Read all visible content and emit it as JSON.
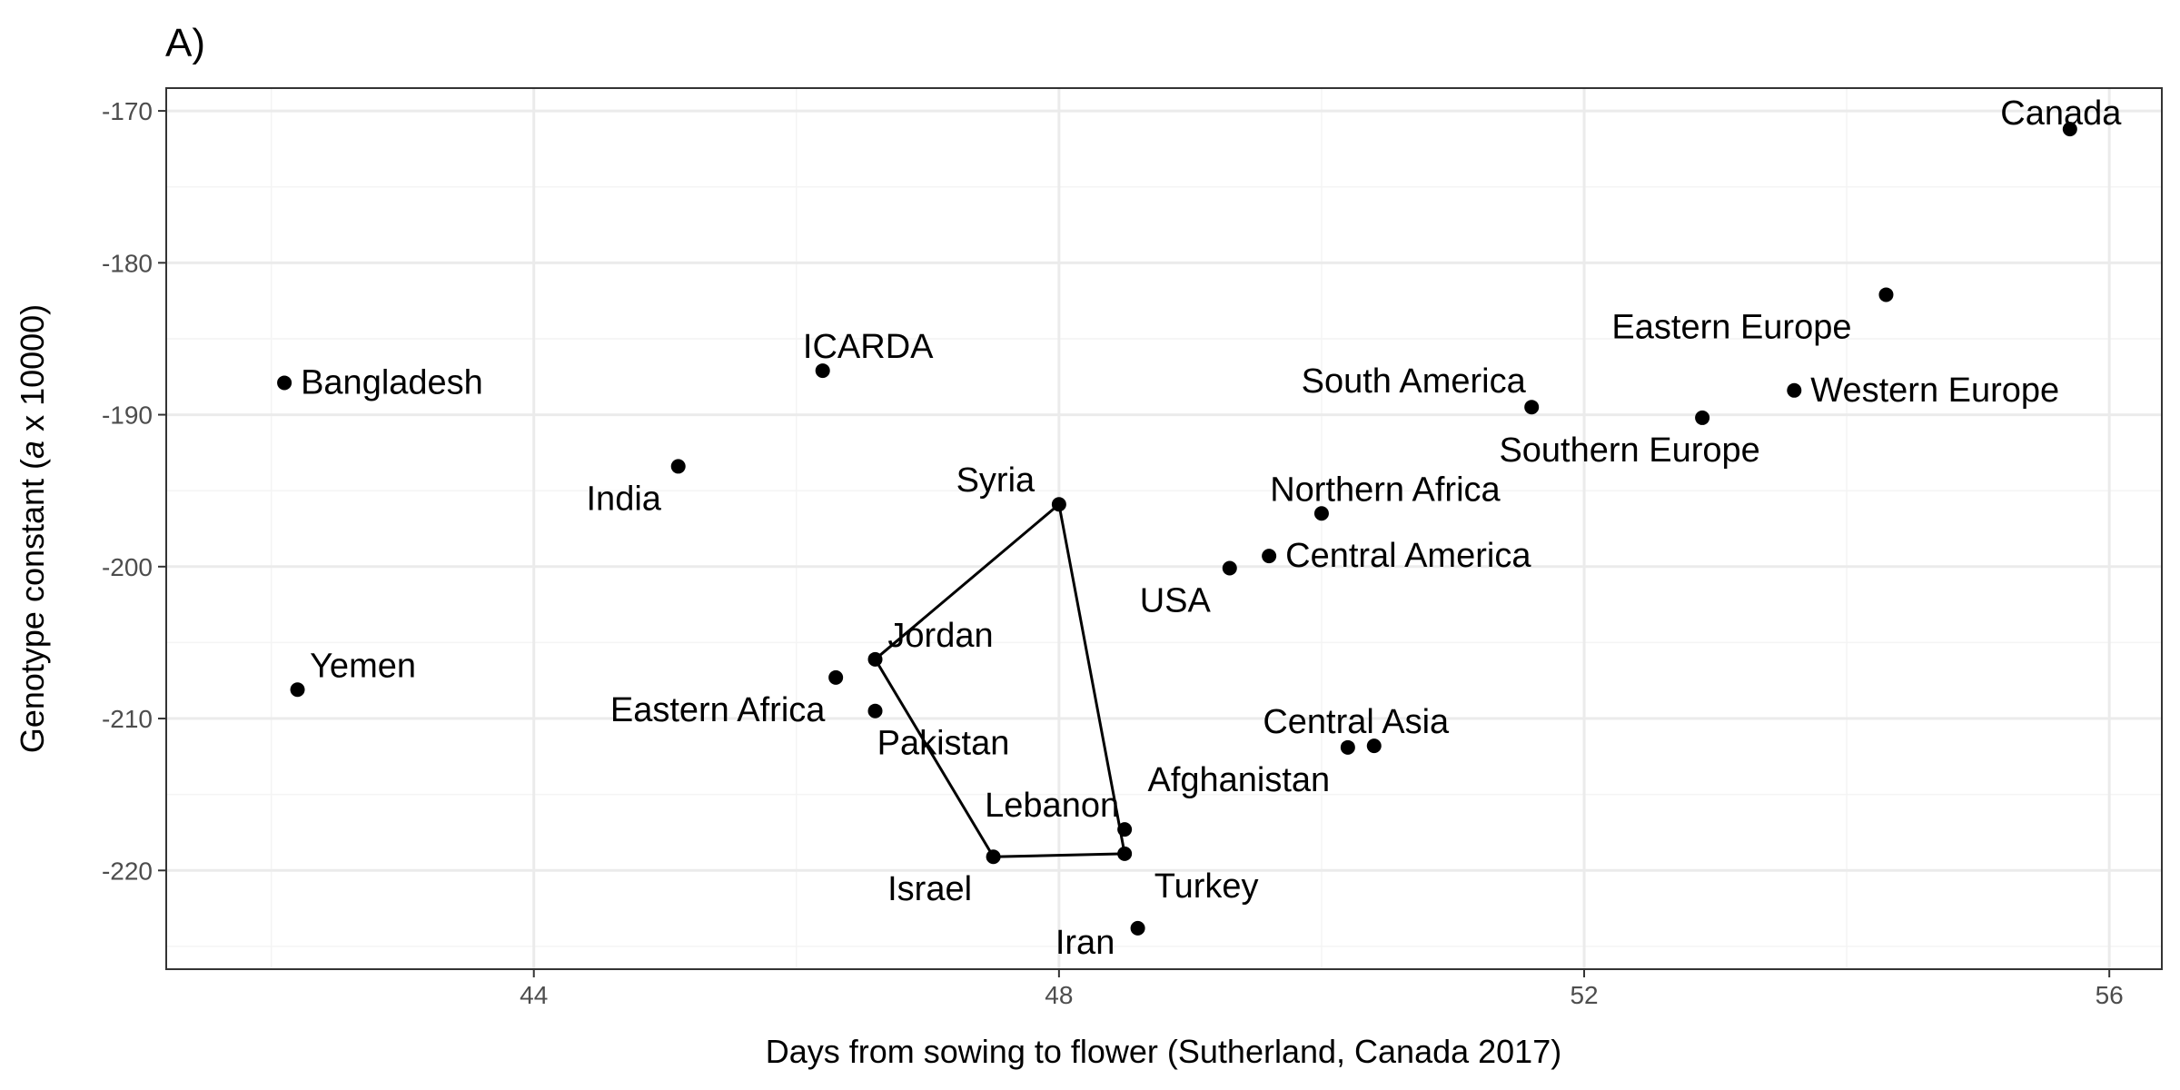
{
  "chart_data": {
    "type": "scatter",
    "panel_tag": "A)",
    "title": "",
    "xlabel": "Days from sowing to flower (Sutherland, Canada 2017)",
    "ylabel_parts": [
      "Genotype constant (",
      "a",
      " x 10000)"
    ],
    "xlim": [
      41.2,
      56.4
    ],
    "ylim": [
      -226.5,
      -168.5
    ],
    "x_ticks": [
      44,
      48,
      52,
      56
    ],
    "y_ticks": [
      -170,
      -180,
      -190,
      -200,
      -210,
      -220
    ],
    "x_tick_labels": [
      "44",
      "48",
      "52",
      "56"
    ],
    "y_tick_labels": [
      "-170",
      "-180",
      "-190",
      "-200",
      "-210",
      "-220"
    ],
    "grid": true,
    "legend": "none",
    "points": [
      {
        "label": "Canada",
        "x": 55.7,
        "y": -171.2
      },
      {
        "label": "Eastern Europe",
        "x": 54.3,
        "y": -182.1
      },
      {
        "label": "Western Europe",
        "x": 53.6,
        "y": -188.4
      },
      {
        "label": "Southern Europe",
        "x": 52.9,
        "y": -190.2
      },
      {
        "label": "South America",
        "x": 51.6,
        "y": -189.5
      },
      {
        "label": "Bangladesh",
        "x": 42.1,
        "y": -187.9
      },
      {
        "label": "ICARDA",
        "x": 46.2,
        "y": -187.1
      },
      {
        "label": "India",
        "x": 45.1,
        "y": -193.4
      },
      {
        "label": "Syria",
        "x": 48.0,
        "y": -195.9
      },
      {
        "label": "Northern Africa",
        "x": 50.0,
        "y": -196.5
      },
      {
        "label": "Central America",
        "x": 49.6,
        "y": -199.3
      },
      {
        "label": "USA",
        "x": 49.3,
        "y": -200.1
      },
      {
        "label": "Yemen",
        "x": 42.2,
        "y": -208.1
      },
      {
        "label": "Eastern Africa",
        "x": 46.3,
        "y": -207.3
      },
      {
        "label": "Jordan",
        "x": 46.6,
        "y": -206.1
      },
      {
        "label": "Pakistan",
        "x": 46.6,
        "y": -209.5
      },
      {
        "label": "Central Asia",
        "x": 50.4,
        "y": -211.8
      },
      {
        "label": "Afghanistan",
        "x": 50.2,
        "y": -211.9
      },
      {
        "label": "Lebanon",
        "x": 48.5,
        "y": -217.3
      },
      {
        "label": "Israel",
        "x": 47.5,
        "y": -219.1
      },
      {
        "label": "Turkey",
        "x": 48.5,
        "y": -218.9
      },
      {
        "label": "Iran",
        "x": 48.6,
        "y": -223.8
      }
    ],
    "hull": [
      "Syria",
      "Jordan",
      "Israel",
      "Turkey"
    ]
  }
}
